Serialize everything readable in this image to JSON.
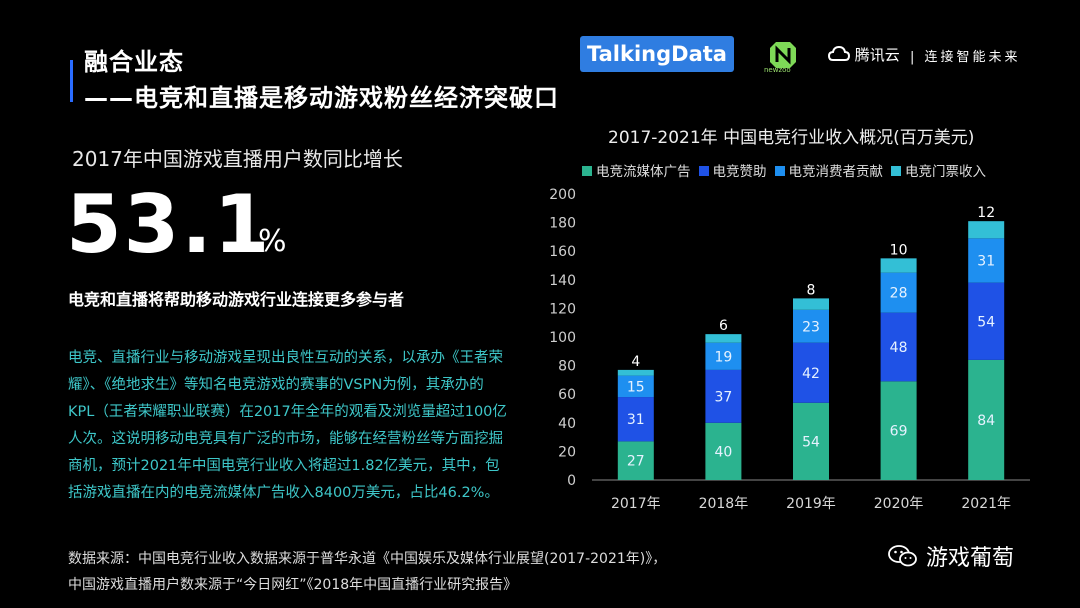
{
  "header": {
    "title_line1": "融合业态",
    "title_line2": "——电竞和直播是移动游戏粉丝经济突破口"
  },
  "logos": {
    "talkingdata": "TalkingData",
    "newzoo": "newzoo",
    "tencent_cloud": "腾讯云",
    "tencent_slogan": "| 连接智能未来"
  },
  "growth": {
    "label": "2017年中国游戏直播用户数同比增长",
    "value": "53.1",
    "unit": "%"
  },
  "subheading": "电竞和直播将帮助移动游戏行业连接更多参与者",
  "body_text": "电竞、直播行业与移动游戏呈现出良性互动的关系，以承办《王者荣耀》、《绝地求生》等知名电竞游戏的赛事的VSPN为例，其承办的KPL（王者荣耀职业联赛）在2017年全年的观看及浏览量超过100亿人次。这说明移动电竞具有广泛的市场，能够在经营粉丝等方面挖掘商机，预计2021年中国电竞行业收入将超过1.82亿美元，其中，包括游戏直播在内的电竞流媒体广告收入8400万美元，占比46.2%。",
  "sources": {
    "line1": "数据来源：中国电竞行业收入数据来源于普华永道《中国娱乐及媒体行业展望(2017-2021年)》，",
    "line2": "中国游戏直播用户数来源于“今日网红”《2018年中国直播行业研究报告》"
  },
  "footer": {
    "wechat_account": "游戏葡萄"
  },
  "chart_data": {
    "type": "bar",
    "stacked": true,
    "title": "2017-2021年  中国电竞行业收入概况(百万美元)",
    "categories": [
      "2017年",
      "2018年",
      "2019年",
      "2020年",
      "2021年"
    ],
    "ylim": [
      0,
      200
    ],
    "yticks": [
      0,
      20,
      40,
      60,
      80,
      100,
      120,
      140,
      160,
      180,
      200
    ],
    "grid": false,
    "legend_position": "top",
    "series": [
      {
        "name": "电竞流媒体广告",
        "values": [
          27,
          40,
          54,
          69,
          84
        ],
        "color": "#2bb38f"
      },
      {
        "name": "电竞赞助",
        "values": [
          31,
          37,
          42,
          48,
          54
        ],
        "color": "#1f52e6"
      },
      {
        "name": "电竞消费者贡献",
        "values": [
          15,
          19,
          23,
          28,
          31
        ],
        "color": "#1e8ff0"
      },
      {
        "name": "电竞门票收入",
        "values": [
          4,
          6,
          8,
          10,
          12
        ],
        "color": "#33bfd6"
      }
    ]
  }
}
